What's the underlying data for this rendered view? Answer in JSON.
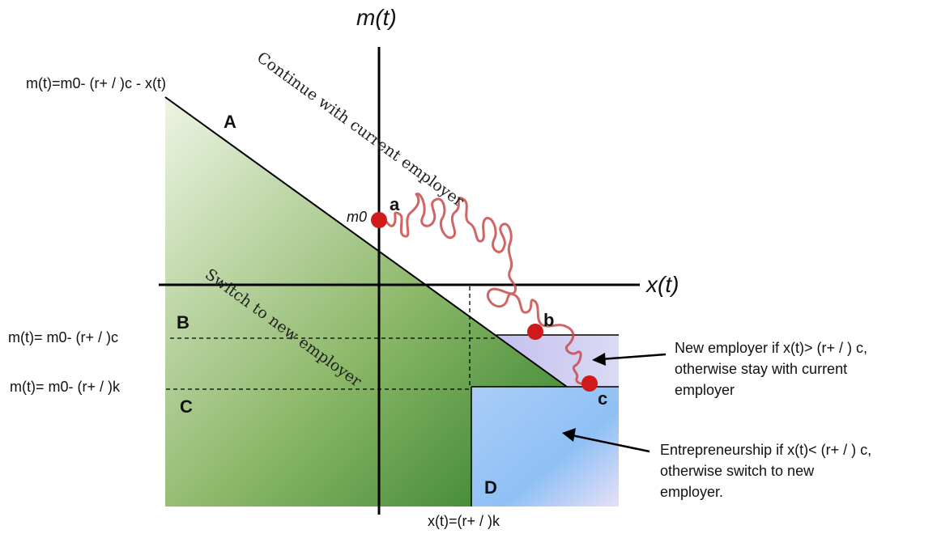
{
  "axes": {
    "y_label": "m(t)",
    "x_label": "x(t)"
  },
  "start_label": "m0",
  "formulas": {
    "top_line": "m(t)=m0- (r+ / )c - x(t)",
    "mid_line": "m(t)= m0- (r+ / )c",
    "low_line": "m(t)= m0- (r+ / )k",
    "bottom_line": "x(t)=(r+ / )k"
  },
  "regions": [
    "A",
    "B",
    "C",
    "D"
  ],
  "points": [
    "a",
    "b",
    "c"
  ],
  "diagonal_texts": {
    "continue": "Continue with current employer",
    "switch": "Switch to new employer"
  },
  "notes": {
    "new_employer": [
      "New employer if x(t)> (r+ / ) c,",
      "otherwise stay with current",
      "employer"
    ],
    "entrepreneurship": [
      "Entrepreneurship if x(t)< (r+ / ) c,",
      "otherwise switch to new",
      "employer."
    ]
  },
  "colors": {
    "green_light": "#e8f0dc",
    "green_dark": "#3e8a33",
    "blue": "#7fb6f2",
    "lavender": "#c9c8ee",
    "path": "#c84a4a",
    "dot": "#d01a1a"
  }
}
